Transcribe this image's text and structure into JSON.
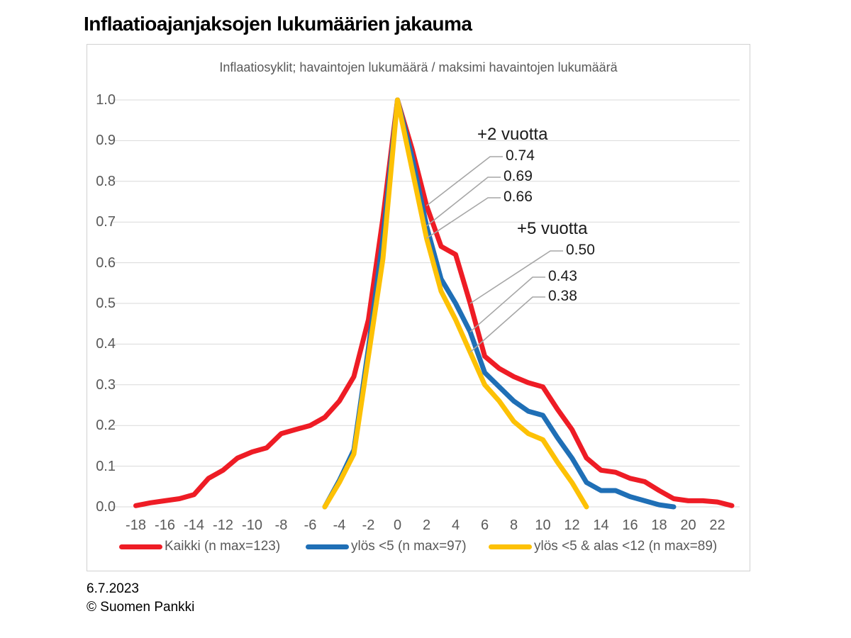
{
  "page": {
    "title": "Inflaatioajanjaksojen lukumäärien jakauma",
    "footer_date": "6.7.2023",
    "footer_copyright": "© Suomen Pankki"
  },
  "chart_data": {
    "type": "line",
    "title": "Inflaatioajanjaksojen lukumäärien jakauma",
    "subtitle": "Inflaatiosyklit; havaintojen lukumäärä / maksimi havaintojen lukumäärä",
    "xlabel": "",
    "ylabel": "",
    "xlim": [
      -19,
      23.6
    ],
    "ylim": [
      0,
      1.0
    ],
    "x_ticks": [
      -18,
      -16,
      -14,
      -12,
      -10,
      -8,
      -6,
      -4,
      -2,
      0,
      2,
      4,
      6,
      8,
      10,
      12,
      14,
      16,
      18,
      20,
      22
    ],
    "y_ticks": [
      0,
      0.1,
      0.2,
      0.3,
      0.4,
      0.5,
      0.6,
      0.7,
      0.8,
      0.9,
      1.0
    ],
    "grid": "horizontal",
    "gridline_color": "#d9d9d9",
    "legend_position": "bottom",
    "series": [
      {
        "name": "Kaikki (n max=123)",
        "color": "#ee1c25",
        "x": [
          -18,
          -17,
          -16,
          -15,
          -14,
          -13,
          -12,
          -11,
          -10,
          -9,
          -8,
          -7,
          -6,
          -5,
          -4,
          -3,
          -2,
          -1,
          0,
          1,
          2,
          3,
          4,
          5,
          6,
          7,
          8,
          9,
          10,
          11,
          12,
          13,
          14,
          15,
          16,
          17,
          18,
          19,
          20,
          21,
          22,
          23
        ],
        "y": [
          0.003,
          0.01,
          0.015,
          0.02,
          0.03,
          0.07,
          0.09,
          0.12,
          0.135,
          0.145,
          0.18,
          0.19,
          0.2,
          0.22,
          0.26,
          0.32,
          0.46,
          0.71,
          1.0,
          0.88,
          0.74,
          0.64,
          0.62,
          0.5,
          0.37,
          0.34,
          0.32,
          0.305,
          0.295,
          0.24,
          0.19,
          0.12,
          0.09,
          0.085,
          0.07,
          0.062,
          0.04,
          0.02,
          0.015,
          0.015,
          0.012,
          0.003
        ]
      },
      {
        "name": "ylös <5 (n max=97)",
        "color": "#1f6fb6",
        "x": [
          -5,
          -4,
          -3,
          -2,
          -1,
          0,
          1,
          2,
          3,
          4,
          5,
          6,
          7,
          8,
          9,
          10,
          11,
          12,
          13,
          14,
          15,
          16,
          17,
          18,
          19
        ],
        "y": [
          0.0,
          0.065,
          0.14,
          0.39,
          0.66,
          1.0,
          0.86,
          0.69,
          0.56,
          0.5,
          0.43,
          0.33,
          0.295,
          0.26,
          0.235,
          0.225,
          0.17,
          0.12,
          0.06,
          0.04,
          0.04,
          0.025,
          0.015,
          0.005,
          0.0
        ]
      },
      {
        "name": "ylös <5 & alas <12 (n max=89)",
        "color": "#fdc105",
        "x": [
          -5,
          -4,
          -3,
          -2,
          -1,
          0,
          1,
          2,
          3,
          4,
          5,
          6,
          7,
          8,
          9,
          10,
          11,
          12,
          13
        ],
        "y": [
          0.0,
          0.06,
          0.13,
          0.37,
          0.61,
          1.0,
          0.83,
          0.66,
          0.53,
          0.46,
          0.38,
          0.3,
          0.26,
          0.21,
          0.18,
          0.165,
          0.11,
          0.06,
          0.0
        ]
      }
    ],
    "annotations": [
      {
        "text": "+2 vuotta"
      },
      {
        "text": "0.74",
        "series": 0,
        "x": 2,
        "value": 0.74
      },
      {
        "text": "0.69",
        "series": 1,
        "x": 2,
        "value": 0.69
      },
      {
        "text": "0.66",
        "series": 2,
        "x": 2,
        "value": 0.66
      },
      {
        "text": "+5 vuotta"
      },
      {
        "text": "0.50",
        "series": 0,
        "x": 5,
        "value": 0.5
      },
      {
        "text": "0.43",
        "series": 1,
        "x": 5,
        "value": 0.43
      },
      {
        "text": "0.38",
        "series": 2,
        "x": 5,
        "value": 0.38
      }
    ],
    "annotation_leader_color": "#a6a6a6"
  }
}
